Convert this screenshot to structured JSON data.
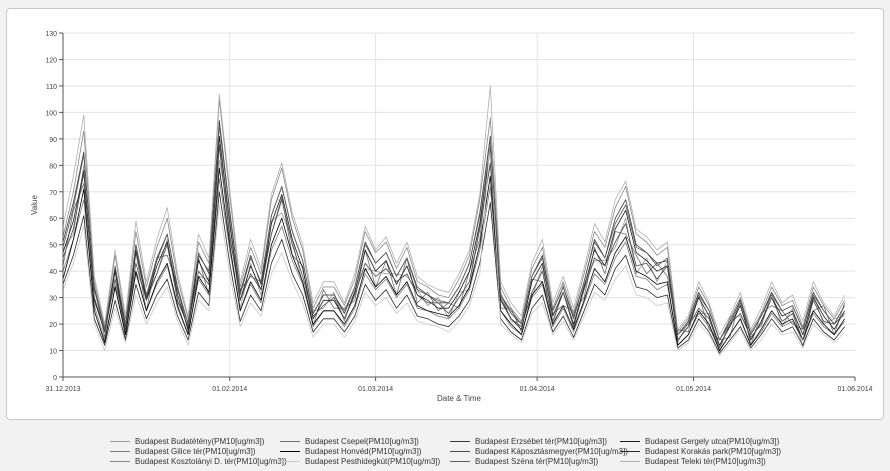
{
  "chart_data": {
    "type": "line",
    "xlabel": "Date & Time",
    "ylabel": "Value",
    "ylim": [
      0,
      130
    ],
    "yticks": [
      0,
      10,
      20,
      30,
      40,
      50,
      60,
      70,
      80,
      90,
      100,
      110,
      120,
      130
    ],
    "xlim": [
      "2013-12-31",
      "2014-06-01"
    ],
    "xticks": [
      {
        "date": "2013-12-31",
        "label": "31.12.2013"
      },
      {
        "date": "2014-02-01",
        "label": "01.02.2014"
      },
      {
        "date": "2014-03-01",
        "label": "01.03.2014"
      },
      {
        "date": "2014-04-01",
        "label": "01.04.2014"
      },
      {
        "date": "2014-05-01",
        "label": "01.05.2014"
      },
      {
        "date": "2014-06-01",
        "label": "01.06.2014"
      }
    ],
    "grid": true,
    "legend_position": "bottom",
    "sample_step_days": 2,
    "dates": [
      "2013-12-31",
      "2014-01-02",
      "2014-01-04",
      "2014-01-06",
      "2014-01-08",
      "2014-01-10",
      "2014-01-12",
      "2014-01-14",
      "2014-01-16",
      "2014-01-18",
      "2014-01-20",
      "2014-01-22",
      "2014-01-24",
      "2014-01-26",
      "2014-01-28",
      "2014-01-30",
      "2014-02-01",
      "2014-02-03",
      "2014-02-05",
      "2014-02-07",
      "2014-02-09",
      "2014-02-11",
      "2014-02-13",
      "2014-02-15",
      "2014-02-17",
      "2014-02-19",
      "2014-02-21",
      "2014-02-23",
      "2014-02-25",
      "2014-02-27",
      "2014-03-01",
      "2014-03-03",
      "2014-03-05",
      "2014-03-07",
      "2014-03-09",
      "2014-03-11",
      "2014-03-13",
      "2014-03-15",
      "2014-03-17",
      "2014-03-19",
      "2014-03-21",
      "2014-03-23",
      "2014-03-25",
      "2014-03-27",
      "2014-03-29",
      "2014-03-31",
      "2014-04-02",
      "2014-04-04",
      "2014-04-06",
      "2014-04-08",
      "2014-04-10",
      "2014-04-12",
      "2014-04-14",
      "2014-04-16",
      "2014-04-18",
      "2014-04-20",
      "2014-04-22",
      "2014-04-24",
      "2014-04-26",
      "2014-04-28",
      "2014-04-30",
      "2014-05-02",
      "2014-05-04",
      "2014-05-06",
      "2014-05-08",
      "2014-05-10",
      "2014-05-12",
      "2014-05-14",
      "2014-05-16",
      "2014-05-18",
      "2014-05-20",
      "2014-05-22",
      "2014-05-24",
      "2014-05-26",
      "2014-05-28",
      "2014-05-30"
    ],
    "base": [
      45,
      58,
      75,
      30,
      16,
      38,
      18,
      45,
      28,
      40,
      48,
      30,
      18,
      42,
      35,
      85,
      55,
      28,
      40,
      32,
      55,
      65,
      50,
      40,
      22,
      28,
      28,
      22,
      30,
      45,
      38,
      42,
      34,
      40,
      30,
      28,
      26,
      25,
      30,
      38,
      55,
      82,
      28,
      22,
      18,
      34,
      40,
      22,
      30,
      20,
      32,
      45,
      40,
      52,
      58,
      44,
      42,
      38,
      40,
      14,
      18,
      28,
      22,
      12,
      18,
      25,
      14,
      20,
      28,
      22,
      24,
      16,
      28,
      22,
      18,
      24
    ],
    "series": [
      {
        "name": "Budapest Budatétény(PM10[ug/m3])",
        "color": "#9a9a9a",
        "offset": [
          3,
          -4,
          5,
          -2,
          4,
          -3,
          2,
          -5,
          3,
          -1,
          4,
          -2,
          3,
          -4,
          2,
          -3,
          5,
          -2,
          3,
          -1,
          4,
          -3,
          2,
          -5,
          3,
          -2,
          4,
          -1,
          3,
          -4,
          2,
          -3,
          5,
          -2,
          3,
          -1,
          4,
          -3,
          2,
          -5,
          3,
          -2,
          4,
          -1,
          3,
          -4,
          2,
          -3,
          5,
          -2,
          3,
          -1,
          4,
          -3,
          2,
          -5,
          3,
          -2,
          4,
          -1,
          3,
          -4,
          2,
          -3,
          5,
          -2,
          3,
          -1,
          4,
          -3,
          2,
          -5,
          3,
          -2,
          4,
          -1
        ]
      },
      {
        "name": "Budapest Csepel(PM10[ug/m3])",
        "color": "#6e6e6e",
        "offset": [
          -3,
          5,
          -2,
          4,
          -1,
          3,
          -4,
          2,
          -3,
          5,
          -2,
          4,
          -1,
          3,
          -4,
          2,
          -3,
          5,
          -2,
          4,
          -1,
          3,
          -4,
          2,
          -3,
          5,
          -2,
          4,
          -1,
          3,
          -4,
          2,
          -3,
          5,
          -2,
          4,
          -1,
          3,
          -4,
          2,
          -3,
          5,
          -2,
          4,
          -1,
          3,
          -4,
          2,
          -3,
          5,
          -2,
          4,
          -1,
          3,
          -4,
          2,
          -3,
          5,
          -2,
          4,
          -1,
          3,
          -4,
          2,
          -3,
          5,
          -2,
          4,
          -1,
          3,
          -4,
          2,
          -3,
          5,
          -2,
          4
        ]
      },
      {
        "name": "Budapest Erzsébet tér(PM10[ug/m3])",
        "color": "#3a3a3a",
        "offset": [
          6,
          8,
          10,
          4,
          2,
          3,
          1,
          5,
          2,
          4,
          6,
          3,
          2,
          4,
          5,
          12,
          8,
          4,
          6,
          3,
          6,
          7,
          5,
          4,
          2,
          3,
          3,
          2,
          4,
          6,
          5,
          5,
          4,
          5,
          3,
          3,
          2,
          3,
          4,
          5,
          7,
          9,
          3,
          2,
          2,
          4,
          6,
          3,
          4,
          2,
          4,
          7,
          5,
          8,
          9,
          6,
          5,
          5,
          4,
          2,
          3,
          4,
          3,
          2,
          3,
          4,
          2,
          3,
          4,
          3,
          3,
          2,
          4,
          3,
          2,
          3
        ]
      },
      {
        "name": "Budapest Gergely utca(PM10[ug/m3])",
        "color": "#1a1a1a",
        "offset": [
          2,
          1,
          3,
          0,
          1,
          2,
          -1,
          3,
          1,
          2,
          3,
          1,
          0,
          2,
          1,
          6,
          3,
          1,
          2,
          1,
          3,
          4,
          2,
          1,
          0,
          1,
          1,
          0,
          2,
          3,
          2,
          2,
          1,
          2,
          1,
          1,
          0,
          1,
          2,
          2,
          3,
          5,
          1,
          0,
          0,
          2,
          3,
          1,
          2,
          0,
          2,
          3,
          2,
          4,
          5,
          3,
          2,
          2,
          2,
          0,
          1,
          2,
          1,
          0,
          1,
          2,
          0,
          1,
          2,
          1,
          1,
          0,
          2,
          1,
          0,
          1
        ]
      },
      {
        "name": "Budapest Gilice tér(PM10[ug/m3])",
        "color": "#7a7a7a",
        "offset": [
          -5,
          -6,
          -8,
          -3,
          -2,
          -4,
          -1,
          -6,
          -3,
          -5,
          -6,
          -4,
          -2,
          -5,
          -4,
          -10,
          -7,
          -3,
          -5,
          -4,
          -7,
          -8,
          -6,
          -5,
          -3,
          -3,
          -3,
          -3,
          -4,
          -6,
          -5,
          -5,
          -4,
          -5,
          -4,
          -3,
          -3,
          -3,
          -4,
          -5,
          -7,
          -10,
          -3,
          -3,
          -2,
          -4,
          -5,
          -3,
          -4,
          -3,
          -4,
          -6,
          -5,
          -7,
          -7,
          -6,
          -5,
          -5,
          -5,
          -2,
          -2,
          -4,
          -3,
          -2,
          -2,
          -3,
          -2,
          -3,
          -4,
          -3,
          -3,
          -2,
          -4,
          -3,
          -2,
          -3
        ]
      },
      {
        "name": "Budapest Honvéd(PM10[ug/m3])",
        "color": "#000000",
        "offset": [
          -8,
          -6,
          -4,
          -5,
          -3,
          -4,
          -2,
          -5,
          -3,
          -4,
          -5,
          -3,
          -2,
          -4,
          -3,
          -6,
          -5,
          -3,
          -4,
          -3,
          -5,
          -5,
          -4,
          -4,
          -2,
          -3,
          -3,
          -2,
          -3,
          -4,
          -4,
          -4,
          -3,
          -4,
          -3,
          -3,
          -2,
          -2,
          -3,
          -4,
          -5,
          -6,
          -3,
          -2,
          -2,
          -3,
          -4,
          -2,
          -3,
          -2,
          -3,
          -4,
          -4,
          -5,
          -5,
          -4,
          -4,
          -3,
          -4,
          -2,
          -2,
          -3,
          -2,
          -2,
          -2,
          -3,
          -2,
          -2,
          -3,
          -2,
          -2,
          -2,
          -3,
          -2,
          -2,
          -2
        ]
      },
      {
        "name": "Budapest Káposztásmegyer(PM10[ug/m3])",
        "color": "#4a4a4a",
        "offset": [
          0,
          -2,
          2,
          -1,
          1,
          -1,
          0,
          -2,
          1,
          -1,
          2,
          -1,
          1,
          -2,
          0,
          3,
          -1,
          1,
          -1,
          1,
          -1,
          2,
          0,
          -2,
          1,
          -1,
          2,
          0,
          1,
          -2,
          0,
          -1,
          2,
          -1,
          1,
          0,
          2,
          -1,
          0,
          -2,
          1,
          -1,
          2,
          0,
          1,
          -2,
          0,
          -1,
          2,
          -1,
          1,
          0,
          2,
          -1,
          0,
          -2,
          1,
          -1,
          2,
          0,
          1,
          -2,
          0,
          -1,
          2,
          -1,
          1,
          0,
          2,
          -1,
          0,
          -2,
          1,
          -1,
          2,
          0
        ]
      },
      {
        "name": "Budapest Korakás park(PM10[ug/m3])",
        "color": "#2a2a2a",
        "offset": [
          -10,
          -12,
          -14,
          -8,
          -4,
          -9,
          -4,
          -10,
          -6,
          -9,
          -11,
          -7,
          -4,
          -10,
          -8,
          -15,
          -12,
          -7,
          -9,
          -7,
          -12,
          -13,
          -11,
          -9,
          -5,
          -6,
          -6,
          -5,
          -7,
          -10,
          -9,
          -9,
          -8,
          -9,
          -7,
          -6,
          -6,
          -6,
          -7,
          -9,
          -12,
          -16,
          -6,
          -5,
          -4,
          -8,
          -9,
          -5,
          -7,
          -5,
          -7,
          -10,
          -9,
          -11,
          -12,
          -10,
          -9,
          -8,
          -9,
          -3,
          -4,
          -6,
          -5,
          -3,
          -4,
          -6,
          -3,
          -4,
          -6,
          -5,
          -5,
          -4,
          -6,
          -5,
          -4,
          -5
        ]
      },
      {
        "name": "Budapest Kosztolányi D. tér(PM10[ug/m3])",
        "color": "#888888",
        "offset": [
          8,
          12,
          18,
          6,
          3,
          8,
          4,
          10,
          6,
          9,
          12,
          7,
          4,
          9,
          8,
          20,
          14,
          6,
          9,
          7,
          12,
          14,
          10,
          8,
          4,
          6,
          6,
          5,
          7,
          10,
          9,
          9,
          7,
          9,
          6,
          6,
          5,
          5,
          7,
          8,
          12,
          16,
          6,
          4,
          3,
          7,
          9,
          4,
          6,
          4,
          7,
          10,
          9,
          12,
          14,
          10,
          9,
          8,
          9,
          3,
          4,
          6,
          5,
          2,
          4,
          5,
          3,
          4,
          6,
          5,
          5,
          3,
          6,
          5,
          4,
          5
        ]
      },
      {
        "name": "Budapest Pesthidegkút(PM10[ug/m3])",
        "color": "#c8c8c8",
        "offset": [
          -12,
          -15,
          -18,
          -10,
          -6,
          -12,
          -5,
          -14,
          -8,
          -12,
          -14,
          -9,
          -6,
          -13,
          -10,
          -20,
          -16,
          -9,
          -12,
          -9,
          -16,
          -18,
          -14,
          -12,
          -7,
          -8,
          -8,
          -7,
          -9,
          -13,
          -11,
          -12,
          -10,
          -12,
          -9,
          -8,
          -7,
          -8,
          -9,
          -11,
          -16,
          8,
          -8,
          -6,
          -5,
          -10,
          -12,
          -6,
          -9,
          -6,
          -9,
          -13,
          -11,
          -15,
          -16,
          -13,
          -12,
          -11,
          -12,
          -4,
          -5,
          -8,
          -6,
          -4,
          -5,
          -7,
          -4,
          -6,
          -8,
          -6,
          -7,
          -5,
          -8,
          -6,
          -5,
          -7
        ]
      },
      {
        "name": "Budapest Széna tér(PM10[ug/m3])",
        "color": "#5a5a5a",
        "offset": [
          4,
          6,
          9,
          3,
          2,
          4,
          2,
          5,
          3,
          5,
          6,
          4,
          2,
          5,
          4,
          10,
          7,
          3,
          5,
          4,
          6,
          7,
          5,
          4,
          2,
          3,
          3,
          3,
          4,
          5,
          5,
          5,
          4,
          5,
          4,
          3,
          3,
          3,
          4,
          5,
          6,
          8,
          3,
          3,
          2,
          4,
          5,
          3,
          4,
          3,
          4,
          6,
          5,
          6,
          7,
          5,
          5,
          4,
          5,
          2,
          2,
          3,
          3,
          2,
          2,
          3,
          2,
          3,
          3,
          3,
          3,
          2,
          3,
          3,
          2,
          3
        ]
      },
      {
        "name": "Budapest Teleki tér(PM10[ug/m3])",
        "color": "#b0b0b0",
        "offset": [
          12,
          18,
          24,
          8,
          4,
          10,
          5,
          14,
          8,
          12,
          16,
          9,
          5,
          12,
          10,
          22,
          16,
          8,
          12,
          9,
          14,
          16,
          12,
          10,
          6,
          8,
          8,
          6,
          9,
          12,
          10,
          11,
          9,
          11,
          8,
          7,
          7,
          7,
          9,
          10,
          14,
          28,
          8,
          6,
          5,
          9,
          12,
          6,
          8,
          6,
          9,
          13,
          11,
          15,
          16,
          12,
          11,
          10,
          11,
          4,
          5,
          8,
          6,
          4,
          5,
          7,
          4,
          6,
          8,
          6,
          7,
          5,
          8,
          6,
          5,
          7
        ]
      }
    ]
  }
}
